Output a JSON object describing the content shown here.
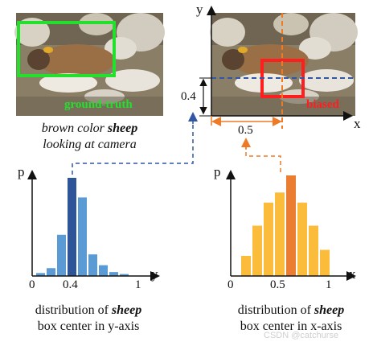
{
  "left_photo": {
    "box_label": "ground-truth",
    "box_color": "#22e02b",
    "caption_line1_pre": "brown color ",
    "caption_line1_bold": "sheep",
    "caption_line2": "looking at camera"
  },
  "right_photo": {
    "box_label": "biased",
    "box_color": "#ff1e1e",
    "axis_x": "x",
    "axis_y": "y",
    "dim_y": "0.4",
    "dim_x": "0.5",
    "blue_color": "#2f56a8",
    "orange_color": "#ee7a26"
  },
  "hist_y": {
    "axis_p": "p",
    "axis_y": "y",
    "ticks": [
      "0",
      "0.4",
      "1"
    ],
    "caption_line1_pre": "distribution of ",
    "caption_line1_bold": "sheep",
    "caption_line2": "box center in y-axis",
    "bar_color": "#5b9bd5",
    "highlight_color": "#2e5597",
    "values": [
      0.03,
      0.08,
      0.42,
      1.0,
      0.8,
      0.22,
      0.11,
      0.04,
      0.02
    ],
    "highlight_index": 3
  },
  "hist_x": {
    "axis_p": "p",
    "axis_x": "x",
    "ticks": [
      "0",
      "0.5",
      "1"
    ],
    "caption_line1_pre": "distribution of ",
    "caption_line1_bold": "sheep",
    "caption_line2": "box center in x-axis",
    "bar_color": "#fbbc3b",
    "highlight_color": "#ea7d32",
    "values": [
      0.2,
      0.5,
      0.73,
      0.83,
      1.0,
      0.73,
      0.5,
      0.26
    ],
    "highlight_index": 4
  },
  "watermark": "CSDN @catchurse"
}
